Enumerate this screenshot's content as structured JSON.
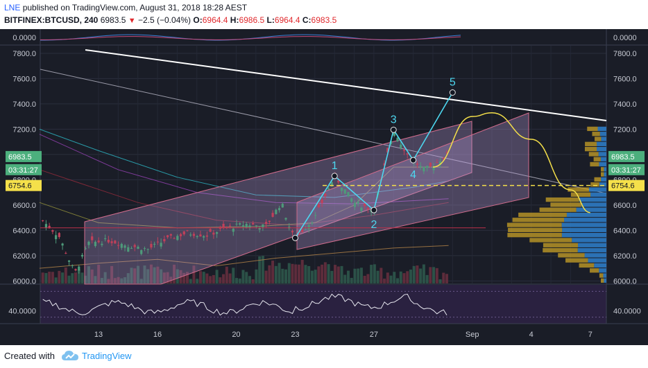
{
  "header": {
    "author": "LNE",
    "published_text": "published on TradingView.com, August 31, 2018 18:28 AEST",
    "symbol": "BITFINEX:BTCUSD, 240",
    "last_price": "6983.5",
    "change_text": "−2.5 (−0.04%)",
    "o_label": "O:",
    "o_value": "6964.4",
    "h_label": "H:",
    "h_value": "6986.5",
    "l_label": "L:",
    "l_value": "6964.4",
    "c_label": "C:",
    "c_value": "6983.5"
  },
  "footer": {
    "created_with": "Created with",
    "brand": "TradingView"
  },
  "colors": {
    "background": "#1a1d27",
    "wave_line": "#4dd8f0",
    "channel_fill": "#b89ad6",
    "yellow_curve": "#f5e04a",
    "price_label_green": "#4caf7d",
    "volume_profile_blue": "#2e7bc4",
    "volume_profile_gold": "#c9a227"
  },
  "chart_data": [
    {
      "type": "line",
      "panel": "top oscillator",
      "y_tick_labels": [
        "0.0000"
      ],
      "ylim": [
        -1,
        1
      ]
    },
    {
      "type": "candlestick",
      "panel": "price",
      "x_tick_labels": [
        "13",
        "16",
        "20",
        "23",
        "27",
        "Sep",
        "4",
        "7"
      ],
      "y_tick_labels": [
        "6000.0",
        "6200.0",
        "6400.0",
        "6600.0",
        "6800.0",
        "7000.0",
        "7200.0",
        "7400.0",
        "7600.0",
        "7800.0"
      ],
      "ylim": [
        5980,
        7860
      ],
      "price_labels": [
        {
          "label": "6983.5",
          "kind": "last price"
        },
        {
          "label": "03:31:27",
          "kind": "countdown"
        },
        {
          "label": "6754.6",
          "kind": "horizontal level"
        }
      ],
      "wave_points": [
        {
          "label": "",
          "time": "Aug 23",
          "price": 6340
        },
        {
          "label": "1",
          "time": "Aug 25",
          "price": 6830
        },
        {
          "label": "2",
          "time": "Aug 27",
          "price": 6560
        },
        {
          "label": "3",
          "time": "Aug 28",
          "price": 7195
        },
        {
          "label": "4",
          "time": "Aug 29",
          "price": 6955
        },
        {
          "label": "5",
          "time": "Aug 31",
          "price": 7490
        }
      ],
      "horizontal_level": 6754.6,
      "red_level": 6420,
      "yellow_projection_curve": [
        {
          "time": "Aug 30",
          "price": 6900
        },
        {
          "time": "Sep 1",
          "price": 7300
        },
        {
          "time": "Sep 2",
          "price": 7330
        },
        {
          "time": "Sep 4",
          "price": 7120
        },
        {
          "time": "Sep 6",
          "price": 6720
        },
        {
          "time": "Sep 7",
          "price": 6540
        }
      ]
    },
    {
      "type": "line",
      "panel": "RSI",
      "y_tick_labels": [
        "40.0000"
      ],
      "ylim": [
        20,
        80
      ]
    }
  ]
}
